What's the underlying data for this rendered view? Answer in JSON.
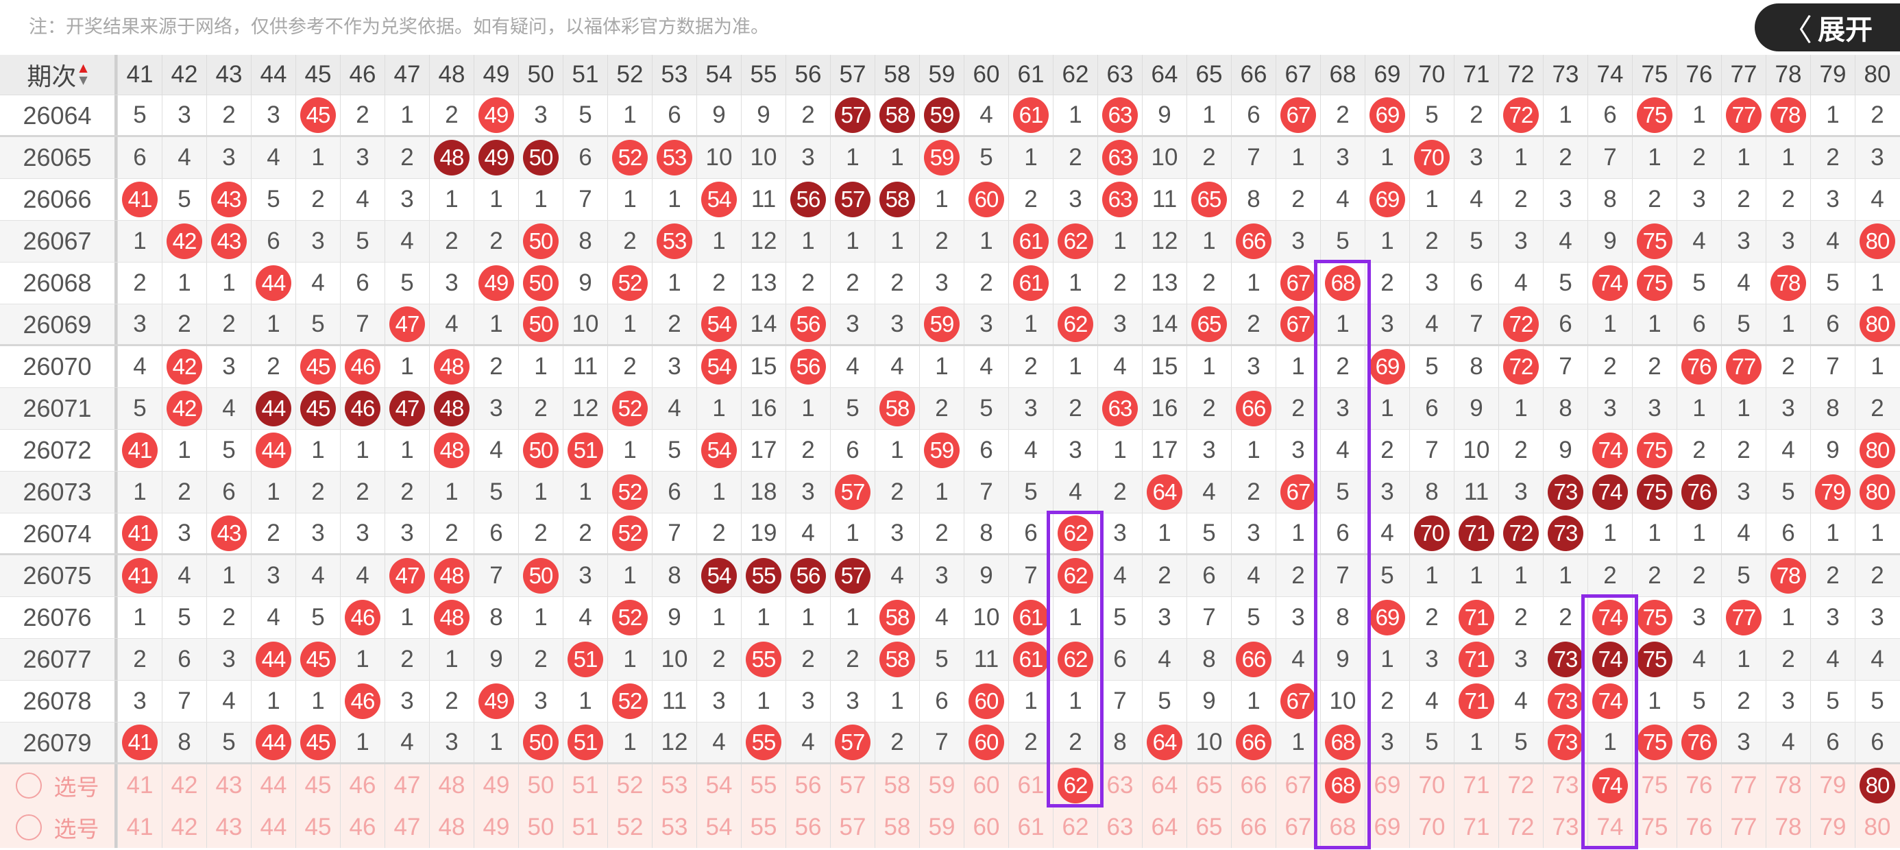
{
  "notice": "注：开奖结果来源于网络，仅供参考不作为兑奖依据。如有疑问，以福体彩官方数据为准。",
  "header": {
    "issue_label": "期次",
    "sort_up": "▲",
    "sort_down": "▼"
  },
  "columns": [
    "41",
    "42",
    "43",
    "44",
    "45",
    "46",
    "47",
    "48",
    "49",
    "50",
    "51",
    "52",
    "53",
    "54",
    "55",
    "56",
    "57",
    "58",
    "59",
    "60",
    "61",
    "62",
    "63",
    "64",
    "65",
    "66",
    "67",
    "68",
    "69",
    "70",
    "71",
    "72",
    "73",
    "74",
    "75",
    "76",
    "77",
    "78",
    "79",
    "80"
  ],
  "legend": {
    "hit_color": "#f04646",
    "streak_color": "#a61f22",
    "hit_prefix": "h",
    "streak_prefix": "d"
  },
  "rows": [
    {
      "issue": "26064",
      "cells": [
        5,
        3,
        2,
        3,
        "h45",
        2,
        1,
        2,
        "h49",
        3,
        5,
        1,
        6,
        9,
        9,
        2,
        "d57",
        "d58",
        "d59",
        4,
        "h61",
        1,
        "h63",
        9,
        1,
        6,
        "h67",
        2,
        "h69",
        5,
        2,
        "h72",
        1,
        6,
        "h75",
        1,
        "h77",
        "h78",
        1,
        2
      ]
    },
    {
      "issue": "26065",
      "cells": [
        6,
        4,
        3,
        4,
        1,
        3,
        2,
        "d48",
        "d49",
        "d50",
        6,
        "h52",
        "h53",
        10,
        10,
        3,
        1,
        1,
        "h59",
        5,
        1,
        2,
        "h63",
        10,
        2,
        7,
        1,
        3,
        1,
        "h70",
        3,
        1,
        2,
        7,
        1,
        2,
        1,
        1,
        2,
        3
      ]
    },
    {
      "issue": "26066",
      "cells": [
        "h41",
        5,
        "h43",
        5,
        2,
        4,
        3,
        1,
        1,
        1,
        7,
        1,
        1,
        "h54",
        11,
        "d56",
        "d57",
        "d58",
        1,
        "h60",
        2,
        3,
        "h63",
        11,
        "h65",
        8,
        2,
        4,
        "h69",
        1,
        4,
        2,
        3,
        8,
        2,
        3,
        2,
        2,
        3,
        4
      ]
    },
    {
      "issue": "26067",
      "cells": [
        1,
        "h42",
        "h43",
        6,
        3,
        5,
        4,
        2,
        2,
        "h50",
        8,
        2,
        "h53",
        1,
        12,
        1,
        1,
        1,
        2,
        1,
        "h61",
        "h62",
        1,
        12,
        1,
        "h66",
        3,
        5,
        1,
        2,
        5,
        3,
        4,
        9,
        "h75",
        4,
        3,
        3,
        4,
        "h80"
      ]
    },
    {
      "issue": "26068",
      "cells": [
        2,
        1,
        1,
        "h44",
        4,
        6,
        5,
        3,
        "h49",
        "h50",
        9,
        "h52",
        1,
        2,
        13,
        2,
        2,
        2,
        3,
        2,
        "h61",
        1,
        2,
        13,
        2,
        1,
        "h67",
        "h68",
        2,
        3,
        6,
        4,
        5,
        "h74",
        "h75",
        5,
        4,
        "h78",
        5,
        1
      ]
    },
    {
      "issue": "26069",
      "cells": [
        3,
        2,
        2,
        1,
        5,
        7,
        "h47",
        4,
        1,
        "h50",
        10,
        1,
        2,
        "h54",
        14,
        "h56",
        3,
        3,
        "h59",
        3,
        1,
        "h62",
        3,
        14,
        "h65",
        2,
        "h67",
        1,
        3,
        4,
        7,
        "h72",
        6,
        1,
        1,
        6,
        5,
        1,
        6,
        "h80"
      ]
    },
    {
      "issue": "26070",
      "cells": [
        4,
        "h42",
        3,
        2,
        "h45",
        "h46",
        1,
        "h48",
        2,
        1,
        11,
        2,
        3,
        "h54",
        15,
        "h56",
        4,
        4,
        1,
        4,
        2,
        1,
        4,
        15,
        1,
        3,
        1,
        2,
        "h69",
        5,
        8,
        "h72",
        7,
        2,
        2,
        "h76",
        "h77",
        2,
        7,
        1
      ]
    },
    {
      "issue": "26071",
      "cells": [
        5,
        "h42",
        4,
        "d44",
        "d45",
        "d46",
        "d47",
        "d48",
        3,
        2,
        12,
        "h52",
        4,
        1,
        16,
        1,
        5,
        "h58",
        2,
        5,
        3,
        2,
        "h63",
        16,
        2,
        "h66",
        2,
        3,
        1,
        6,
        9,
        1,
        8,
        3,
        3,
        1,
        1,
        3,
        8,
        2
      ]
    },
    {
      "issue": "26072",
      "cells": [
        "h41",
        1,
        5,
        "h44",
        1,
        1,
        1,
        "h48",
        4,
        "h50",
        "h51",
        1,
        5,
        "h54",
        17,
        2,
        6,
        1,
        "h59",
        6,
        4,
        3,
        1,
        17,
        3,
        1,
        3,
        4,
        2,
        7,
        10,
        2,
        9,
        "h74",
        "h75",
        2,
        2,
        4,
        9,
        "h80"
      ]
    },
    {
      "issue": "26073",
      "cells": [
        1,
        2,
        6,
        1,
        2,
        2,
        2,
        1,
        5,
        1,
        1,
        "h52",
        6,
        1,
        18,
        3,
        "h57",
        2,
        1,
        7,
        5,
        4,
        2,
        "h64",
        4,
        2,
        "h67",
        5,
        3,
        8,
        11,
        3,
        "d73",
        "d74",
        "d75",
        "d76",
        3,
        5,
        "h79",
        "h80"
      ]
    },
    {
      "issue": "26074",
      "cells": [
        "h41",
        3,
        "h43",
        2,
        3,
        3,
        3,
        2,
        6,
        2,
        2,
        "h52",
        7,
        2,
        19,
        4,
        1,
        3,
        2,
        8,
        6,
        "h62",
        3,
        1,
        5,
        3,
        1,
        6,
        4,
        "d70",
        "d71",
        "d72",
        "d73",
        1,
        1,
        1,
        4,
        6,
        1,
        1
      ]
    },
    {
      "issue": "26075",
      "cells": [
        "h41",
        4,
        1,
        3,
        4,
        4,
        "h47",
        "h48",
        7,
        "h50",
        3,
        1,
        8,
        "d54",
        "d55",
        "d56",
        "d57",
        4,
        3,
        9,
        7,
        "h62",
        4,
        2,
        6,
        4,
        2,
        7,
        5,
        1,
        1,
        1,
        1,
        2,
        2,
        2,
        5,
        "h78",
        2,
        2
      ]
    },
    {
      "issue": "26076",
      "cells": [
        1,
        5,
        2,
        4,
        5,
        "h46",
        1,
        "h48",
        8,
        1,
        4,
        "h52",
        9,
        1,
        1,
        1,
        1,
        "h58",
        4,
        10,
        "h61",
        1,
        5,
        3,
        7,
        5,
        3,
        8,
        "h69",
        2,
        "h71",
        2,
        2,
        "h74",
        "h75",
        3,
        "h77",
        1,
        3,
        3
      ]
    },
    {
      "issue": "26077",
      "cells": [
        2,
        6,
        3,
        "h44",
        "h45",
        1,
        2,
        1,
        9,
        2,
        "h51",
        1,
        10,
        2,
        "h55",
        2,
        2,
        "h58",
        5,
        11,
        "h61",
        "h62",
        6,
        4,
        8,
        "h66",
        4,
        9,
        1,
        3,
        "h71",
        3,
        "d73",
        "d74",
        "d75",
        4,
        1,
        2,
        4,
        4
      ]
    },
    {
      "issue": "26078",
      "cells": [
        3,
        7,
        4,
        1,
        1,
        "h46",
        3,
        2,
        "h49",
        3,
        1,
        "h52",
        11,
        3,
        1,
        3,
        3,
        1,
        6,
        "h60",
        1,
        1,
        7,
        5,
        9,
        1,
        "h67",
        10,
        2,
        4,
        "h71",
        4,
        "h73",
        "h74",
        1,
        5,
        2,
        3,
        5,
        5
      ]
    },
    {
      "issue": "26079",
      "cells": [
        "h41",
        8,
        5,
        "h44",
        "h45",
        1,
        4,
        3,
        1,
        "h50",
        "h51",
        1,
        12,
        4,
        "h55",
        4,
        "h57",
        2,
        7,
        "h60",
        2,
        2,
        8,
        "h64",
        10,
        "h66",
        1,
        "h68",
        3,
        5,
        1,
        5,
        "h73",
        1,
        "h75",
        "h76",
        3,
        4,
        6,
        6
      ]
    }
  ],
  "select_rows": [
    {
      "label": "选号",
      "selected": [
        "62",
        "68",
        "74"
      ],
      "selected_dark": [
        "80"
      ]
    },
    {
      "label": "选号",
      "selected": [],
      "selected_dark": []
    }
  ],
  "highlight_boxes": [
    {
      "column": "62",
      "from_issue": "26074",
      "to_row": "select-1"
    },
    {
      "column": "68",
      "from_issue": "26068",
      "to_row": "select-2"
    },
    {
      "column": "74",
      "from_issue": "26076",
      "to_row": "select-2"
    }
  ],
  "highlight_color": "#8d2ae6",
  "expand_button": {
    "icon": "chevron-left-icon",
    "label": "展开"
  }
}
